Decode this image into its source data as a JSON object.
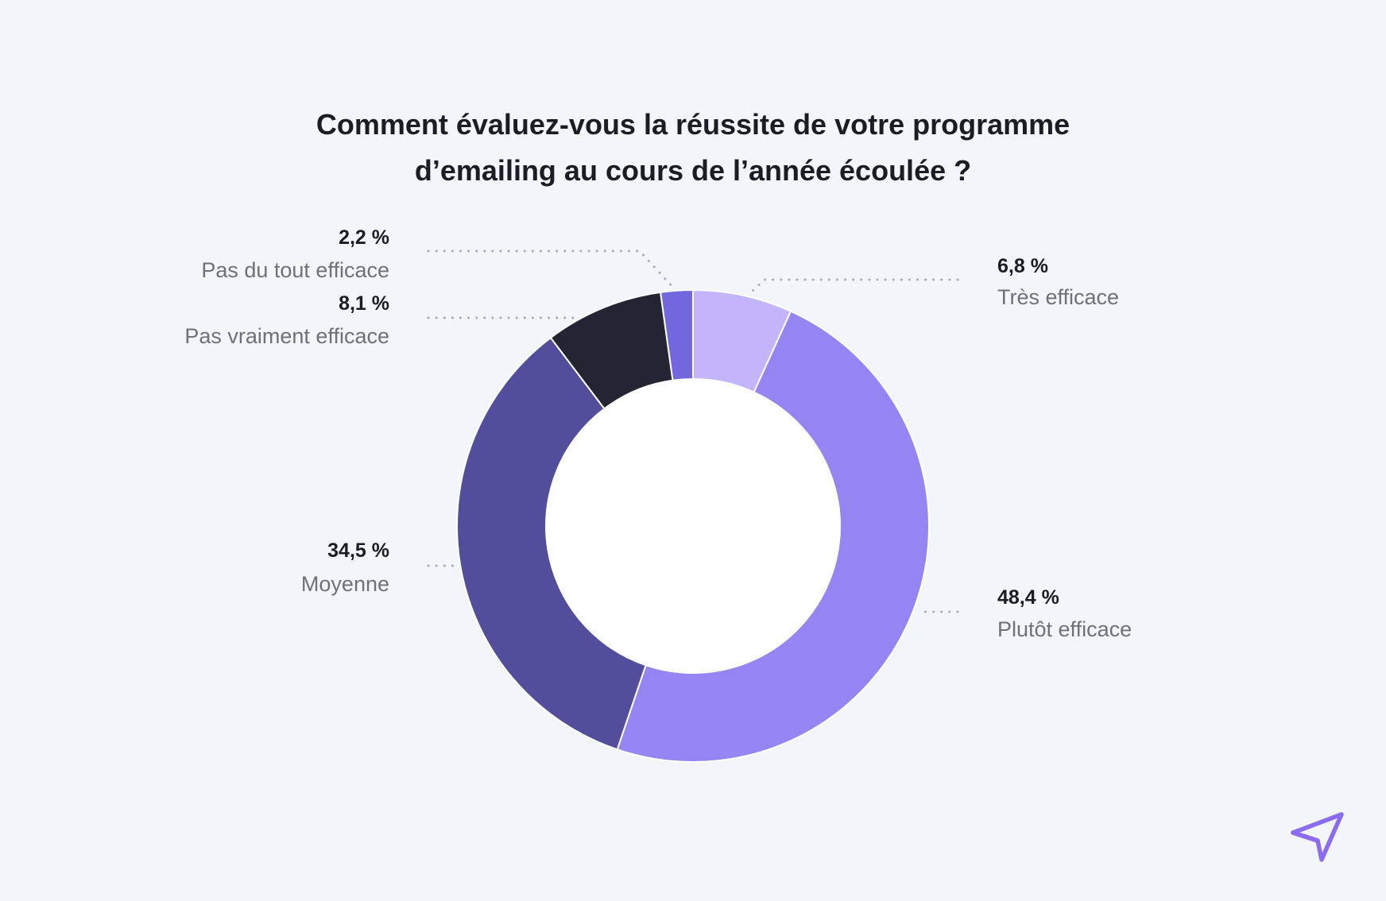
{
  "title_lines": [
    "Comment évaluez-vous la réussite de votre programme",
    "d’emailing au cours de l’année écoulée ?"
  ],
  "chart_data": {
    "type": "pie",
    "donut": true,
    "title": "Comment évaluez-vous la réussite de votre programme d’emailing au cours de l’année écoulée ?",
    "categories": [
      "Très efficace",
      "Plutôt efficace",
      "Moyenne",
      "Pas vraiment efficace",
      "Pas du tout efficace"
    ],
    "values": [
      6.8,
      48.4,
      34.5,
      8.1,
      2.2
    ],
    "value_labels": [
      "6,8 %",
      "48,4 %",
      "34,5 %",
      "8,1 %",
      "2,2 %"
    ],
    "colors": [
      "#c4b5fa",
      "#9585f3",
      "#534e9c",
      "#242533",
      "#7367de"
    ],
    "start_angle": "top, clockwise",
    "legend": "none"
  },
  "colors": {
    "background": "#f3f6f9",
    "text_dark": "#1b1d24",
    "text_muted": "#6d7178",
    "leader_line": "#a9adb3",
    "brand_accent": "#8b6cf0"
  },
  "logo_icon": "paper-plane-logo-icon"
}
